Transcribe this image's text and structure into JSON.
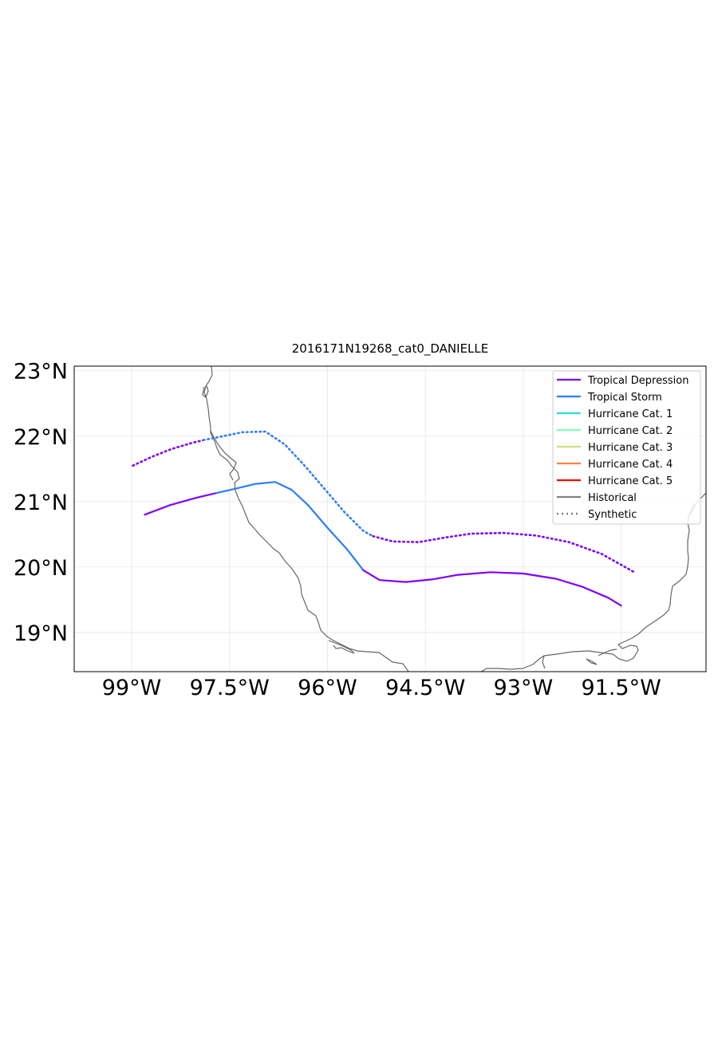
{
  "chart_data": {
    "type": "line",
    "title": "2016171N19268_cat0_DANIELLE",
    "xlim": [
      -99.88,
      -90.2
    ],
    "ylim": [
      18.4,
      23.07
    ],
    "x_ticks": [
      {
        "value": -99.0,
        "label": "99°W"
      },
      {
        "value": -97.5,
        "label": "97.5°W"
      },
      {
        "value": -96.0,
        "label": "96°W"
      },
      {
        "value": -94.5,
        "label": "94.5°W"
      },
      {
        "value": -93.0,
        "label": "93°W"
      },
      {
        "value": -91.5,
        "label": "91.5°W"
      }
    ],
    "y_ticks": [
      {
        "value": 19,
        "label": "19°N"
      },
      {
        "value": 20,
        "label": "20°N"
      },
      {
        "value": 21,
        "label": "21°N"
      },
      {
        "value": 22,
        "label": "22°N"
      },
      {
        "value": 23,
        "label": "23°N"
      }
    ],
    "grid": true,
    "legend_position": "top-right",
    "legend": [
      {
        "label": "Tropical Depression",
        "color": "#7f00ff",
        "style": "solid"
      },
      {
        "label": "Tropical Storm",
        "color": "#2c7ef7",
        "style": "solid"
      },
      {
        "label": "Hurricane Cat. 1",
        "color": "#2adddd",
        "style": "solid"
      },
      {
        "label": "Hurricane Cat. 2",
        "color": "#80ffb4",
        "style": "solid"
      },
      {
        "label": "Hurricane Cat. 3",
        "color": "#d4dd80",
        "style": "solid"
      },
      {
        "label": "Hurricane Cat. 4",
        "color": "#ff8048",
        "style": "solid"
      },
      {
        "label": "Hurricane Cat. 5",
        "color": "#ff0000",
        "style": "solid"
      },
      {
        "label": "Historical",
        "color": "#808080",
        "style": "solid"
      },
      {
        "label": "Synthetic",
        "color": "#808080",
        "style": "dotted"
      }
    ],
    "series": [
      {
        "kind": "historical",
        "segments": [
          {
            "category": "Tropical Depression",
            "color": "#7f00ff",
            "points": [
              [
                -98.8,
                20.8
              ],
              [
                -98.4,
                20.95
              ],
              [
                -98.0,
                21.06
              ],
              [
                -97.7,
                21.13
              ]
            ]
          },
          {
            "category": "Tropical Storm",
            "color": "#2c7ef7",
            "points": [
              [
                -97.7,
                21.13
              ],
              [
                -97.4,
                21.2
              ],
              [
                -97.1,
                21.27
              ],
              [
                -96.8,
                21.3
              ],
              [
                -96.55,
                21.18
              ],
              [
                -96.3,
                20.95
              ],
              [
                -96.0,
                20.6
              ],
              [
                -95.7,
                20.27
              ],
              [
                -95.45,
                19.95
              ]
            ]
          },
          {
            "category": "Tropical Depression",
            "color": "#7f00ff",
            "points": [
              [
                -95.45,
                19.95
              ],
              [
                -95.2,
                19.8
              ],
              [
                -94.8,
                19.77
              ],
              [
                -94.4,
                19.81
              ],
              [
                -94.0,
                19.88
              ],
              [
                -93.5,
                19.92
              ],
              [
                -93.0,
                19.9
              ],
              [
                -92.5,
                19.82
              ],
              [
                -92.1,
                19.7
              ],
              [
                -91.7,
                19.53
              ],
              [
                -91.5,
                19.41
              ]
            ]
          }
        ]
      },
      {
        "kind": "synthetic",
        "segments": [
          {
            "category": "Tropical Depression",
            "color": "#7f00ff",
            "points": [
              [
                -98.98,
                21.55
              ],
              [
                -98.7,
                21.68
              ],
              [
                -98.4,
                21.8
              ],
              [
                -98.1,
                21.89
              ],
              [
                -97.9,
                21.94
              ]
            ]
          },
          {
            "category": "Tropical Storm",
            "color": "#2c7ef7",
            "points": [
              [
                -97.9,
                21.94
              ],
              [
                -97.6,
                22.0
              ],
              [
                -97.3,
                22.06
              ],
              [
                -96.95,
                22.07
              ],
              [
                -96.65,
                21.87
              ],
              [
                -96.35,
                21.55
              ],
              [
                -96.05,
                21.2
              ],
              [
                -95.75,
                20.85
              ],
              [
                -95.45,
                20.55
              ],
              [
                -95.3,
                20.47
              ]
            ]
          },
          {
            "category": "Tropical Depression",
            "color": "#7f00ff",
            "points": [
              [
                -95.3,
                20.47
              ],
              [
                -95.0,
                20.39
              ],
              [
                -94.6,
                20.38
              ],
              [
                -94.2,
                20.45
              ],
              [
                -93.8,
                20.51
              ],
              [
                -93.3,
                20.52
              ],
              [
                -92.8,
                20.48
              ],
              [
                -92.3,
                20.38
              ],
              [
                -91.8,
                20.2
              ],
              [
                -91.3,
                19.92
              ]
            ]
          }
        ]
      }
    ]
  }
}
